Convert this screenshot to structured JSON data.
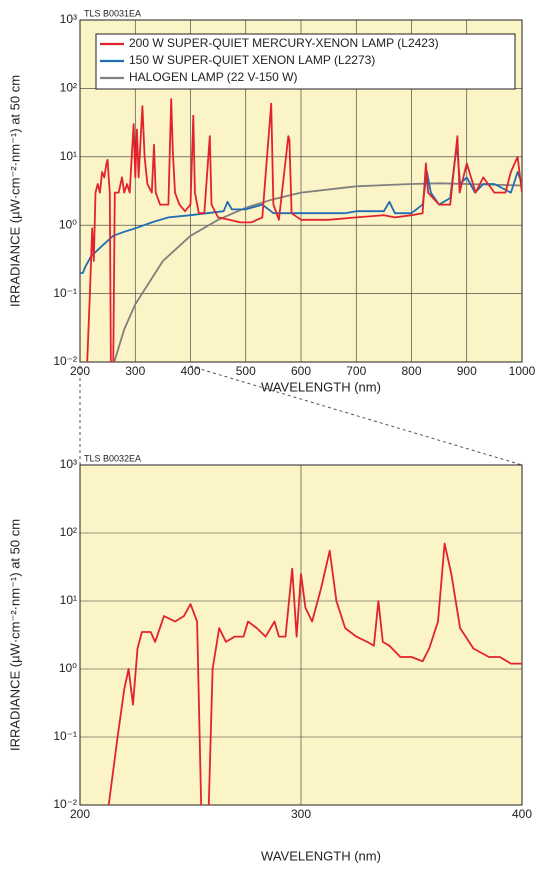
{
  "chart_data": [
    {
      "type": "line",
      "yscale": "log",
      "grid": true,
      "legend": "top right",
      "annotation": "TLS B0031EA",
      "xlabel": "WAVELENGTH (nm)",
      "ylabel": "IRRADIANCE (µW·cm⁻²·nm⁻¹) at 50 cm",
      "xlim": [
        200,
        1000
      ],
      "xticks": [
        200,
        300,
        400,
        500,
        600,
        700,
        800,
        900,
        1000
      ],
      "ylim": [
        0.01,
        1000
      ],
      "yticks": [
        {
          "value": 0.01,
          "label": "10⁻²"
        },
        {
          "value": 0.1,
          "label": "10⁻¹"
        },
        {
          "value": 1,
          "label": "10⁰"
        },
        {
          "value": 10,
          "label": "10¹"
        },
        {
          "value": 100,
          "label": "10²"
        },
        {
          "value": 1000,
          "label": "10³"
        }
      ],
      "series": [
        {
          "name": "200 W SUPER-QUIET MERCURY-XENON LAMP (L2423)",
          "color": "#e3232b",
          "x": [
            213,
            218,
            222,
            225,
            228,
            232,
            236,
            240,
            244,
            248,
            250,
            252,
            254,
            256,
            260,
            263,
            270,
            276,
            280,
            285,
            290,
            297,
            300,
            303,
            306,
            313,
            317,
            322,
            330,
            334,
            337,
            345,
            355,
            360,
            365,
            368,
            372,
            380,
            390,
            400,
            405,
            408,
            415,
            425,
            435,
            438,
            450,
            470,
            490,
            510,
            530,
            546,
            550,
            560,
            577,
            579,
            583,
            600,
            650,
            700,
            750,
            770,
            800,
            820,
            826,
            830,
            850,
            870,
            883,
            887,
            900,
            916,
            930,
            950,
            970,
            980,
            992,
            1000
          ],
          "values": [
            0.01,
            0.1,
            0.9,
            0.3,
            3,
            4,
            3,
            6,
            5,
            8,
            9,
            5,
            3,
            0.008,
            0.008,
            3,
            3,
            5,
            3,
            4,
            3,
            30,
            5,
            25,
            5,
            55,
            10,
            4,
            3,
            15,
            3,
            2,
            2,
            2,
            70,
            12,
            3,
            2,
            1.6,
            2,
            40,
            3,
            1.5,
            1.5,
            20,
            2,
            1.3,
            1.2,
            1.1,
            1.1,
            1.3,
            60,
            2,
            1.2,
            20,
            18,
            1.5,
            1.2,
            1.2,
            1.3,
            1.4,
            1.3,
            1.4,
            1.5,
            8,
            3,
            2,
            2,
            20,
            3,
            8,
            3,
            5,
            3,
            3,
            6,
            10,
            3
          ]
        },
        {
          "name": "150 W SUPER-QUIET XENON LAMP (L2273)",
          "color": "#1f6db4",
          "x": [
            200,
            205,
            210,
            220,
            240,
            260,
            280,
            300,
            330,
            360,
            400,
            430,
            460,
            467,
            475,
            500,
            530,
            550,
            600,
            650,
            680,
            700,
            750,
            760,
            770,
            800,
            820,
            828,
            835,
            850,
            870,
            882,
            888,
            900,
            915,
            930,
            950,
            980,
            992,
            1000
          ],
          "values": [
            0.2,
            0.2,
            0.25,
            0.35,
            0.5,
            0.7,
            0.8,
            0.9,
            1.1,
            1.3,
            1.4,
            1.5,
            1.6,
            2.2,
            1.7,
            1.7,
            2,
            1.5,
            1.5,
            1.5,
            1.5,
            1.6,
            1.6,
            2.2,
            1.5,
            1.5,
            2,
            6,
            3,
            2,
            2.5,
            15,
            4,
            5,
            3,
            4,
            4,
            3,
            6,
            4
          ]
        },
        {
          "name": "HALOGEN LAMP (22 V-150 W)",
          "color": "#7f7f7f",
          "x": [
            262,
            280,
            300,
            350,
            400,
            450,
            500,
            550,
            600,
            700,
            800,
            850,
            900,
            1000
          ],
          "values": [
            0.01,
            0.03,
            0.07,
            0.3,
            0.7,
            1.2,
            1.8,
            2.4,
            3,
            3.7,
            4,
            4.1,
            4,
            3.8
          ]
        }
      ]
    },
    {
      "type": "line",
      "yscale": "log",
      "grid": true,
      "annotation": "TLS B0032EA",
      "xlabel": "WAVELENGTH (nm)",
      "ylabel": "IRRADIANCE (µW·cm⁻²·nm⁻¹) at 50 cm",
      "xlim": [
        200,
        400
      ],
      "xticks": [
        200,
        300,
        400
      ],
      "ylim": [
        0.01,
        1000
      ],
      "yticks": [
        {
          "value": 0.01,
          "label": "10⁻²"
        },
        {
          "value": 0.1,
          "label": "10⁻¹"
        },
        {
          "value": 1,
          "label": "10⁰"
        },
        {
          "value": 10,
          "label": "10¹"
        },
        {
          "value": 100,
          "label": "10²"
        },
        {
          "value": 1000,
          "label": "10³"
        }
      ],
      "series": [
        {
          "color": "#e3232b",
          "x": [
            213,
            217,
            220,
            222,
            224,
            226,
            228,
            232,
            234,
            238,
            243,
            247,
            250,
            253,
            255,
            258,
            260,
            263,
            266,
            270,
            274,
            276,
            280,
            284,
            288,
            290,
            293,
            296,
            298,
            300,
            302,
            305,
            309,
            313,
            316,
            320,
            325,
            330,
            333,
            335,
            337,
            340,
            345,
            350,
            355,
            358,
            362,
            365,
            368,
            372,
            378,
            385,
            390,
            395,
            400
          ],
          "values": [
            0.01,
            0.1,
            0.5,
            1,
            0.3,
            2,
            3.5,
            3.5,
            2.5,
            6,
            5,
            6,
            9,
            5,
            0.005,
            0.005,
            1,
            4,
            2.5,
            3,
            3,
            5,
            4,
            3,
            5,
            3,
            3,
            30,
            3,
            25,
            8,
            5,
            15,
            55,
            10,
            4,
            3,
            2.5,
            2.2,
            10,
            2.5,
            2.2,
            1.5,
            1.5,
            1.3,
            2,
            5,
            70,
            25,
            4,
            2,
            1.5,
            1.5,
            1.2,
            1.2
          ]
        }
      ]
    }
  ]
}
